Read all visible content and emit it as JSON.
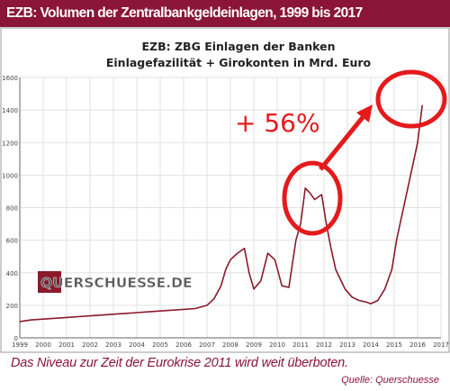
{
  "header": {
    "title": "EZB: Volumen der Zentralbankgeldeinlagen, 1999 bis 2017"
  },
  "caption": "Das Niveau zur Zeit der Eurokrise 2011 wird weit überboten.",
  "source": "Quelle: Querschuesse",
  "annotation": "+ 56%",
  "watermark": "QUERSCHUESSE.DE",
  "colors": {
    "header_bg": "#8a1538",
    "series": "#8b1a2b",
    "highlight": "#e41a1c",
    "caption": "#8a1538"
  },
  "chart_data": {
    "type": "line",
    "title": "EZB: ZBG Einlagen der Banken",
    "subtitle": "Einlagefazilität + Girokonten in Mrd. Euro",
    "xlabel": "",
    "ylabel": "",
    "x_ticks": [
      "1999",
      "2000",
      "2001",
      "2002",
      "2003",
      "2004",
      "2005",
      "2006",
      "2007",
      "2008",
      "2009",
      "2010",
      "2011",
      "2012",
      "2013",
      "2014",
      "2015",
      "2016",
      "2017"
    ],
    "y_ticks": [
      0,
      200,
      400,
      600,
      800,
      1000,
      1200,
      1400,
      1600
    ],
    "xlim": [
      1999,
      2017
    ],
    "ylim": [
      0,
      1600
    ],
    "grid": true,
    "series": [
      {
        "x": [
          1999.0,
          1999.5,
          2000.0,
          2000.5,
          2001.0,
          2001.5,
          2002.0,
          2002.5,
          2003.0,
          2003.5,
          2004.0,
          2004.5,
          2005.0,
          2005.5,
          2006.0,
          2006.5,
          2007.0,
          2007.3,
          2007.6,
          2007.8,
          2008.0,
          2008.3,
          2008.6,
          2008.8,
          2009.0,
          2009.3,
          2009.6,
          2009.9,
          2010.2,
          2010.5,
          2010.8,
          2011.0,
          2011.2,
          2011.4,
          2011.6,
          2011.9,
          2012.1,
          2012.3,
          2012.5,
          2012.7,
          2012.9,
          2013.2,
          2013.5,
          2013.8,
          2014.0,
          2014.3,
          2014.6,
          2014.9,
          2015.1,
          2015.4,
          2015.7,
          2016.0,
          2016.2
        ],
        "y": [
          100,
          110,
          115,
          120,
          125,
          130,
          135,
          140,
          145,
          150,
          155,
          160,
          165,
          170,
          175,
          180,
          200,
          240,
          320,
          420,
          480,
          520,
          550,
          400,
          300,
          350,
          520,
          480,
          320,
          310,
          600,
          700,
          920,
          890,
          850,
          880,
          700,
          550,
          420,
          360,
          300,
          250,
          230,
          220,
          210,
          230,
          300,
          420,
          600,
          800,
          1000,
          1200,
          1430
        ]
      }
    ]
  }
}
